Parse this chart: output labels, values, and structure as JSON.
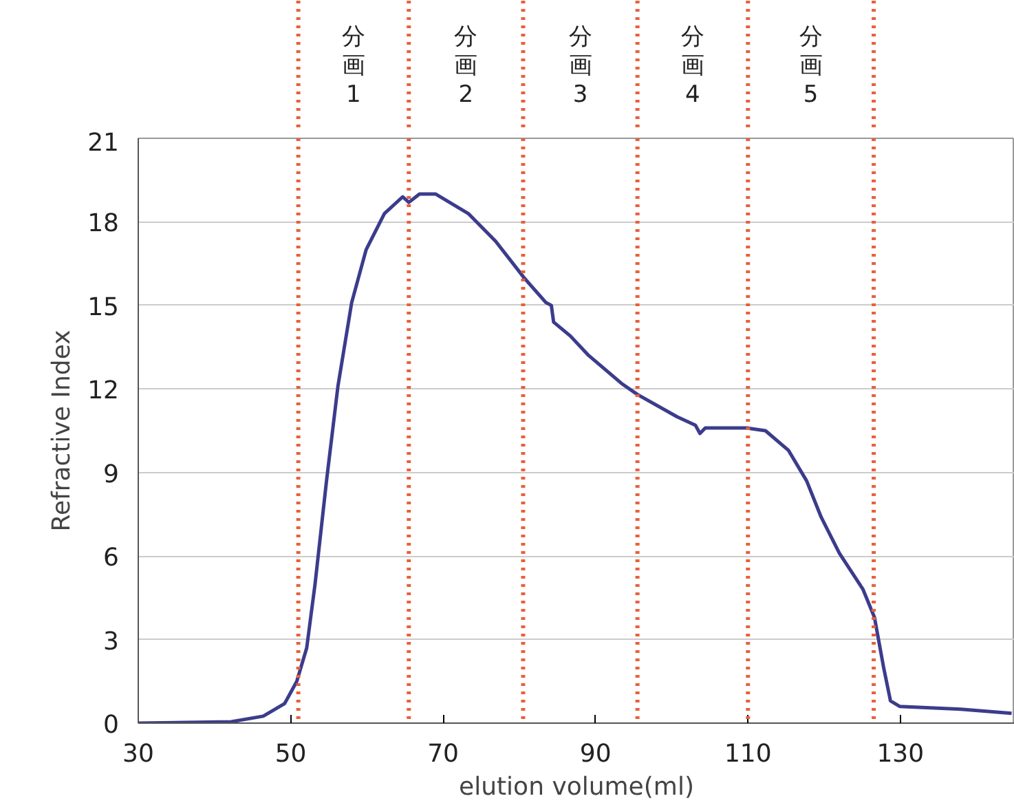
{
  "chart_data": {
    "type": "line",
    "xlabel": "elution volume(ml)",
    "ylabel": "Refractive Index",
    "xlim": [
      30,
      145
    ],
    "xticks": [
      30,
      50,
      70,
      90,
      110,
      130
    ],
    "ylim": [
      0,
      21
    ],
    "yticks": [
      0,
      3,
      6,
      9,
      12,
      15,
      18,
      21
    ],
    "grid": "y",
    "marker": "none",
    "line_style": "solid",
    "series": [
      {
        "color": "#3c3c8c",
        "x": [
          30,
          42.2,
          46.4,
          49.2,
          50.8,
          52.1,
          53.2,
          54.7,
          56.2,
          58.0,
          59.9,
          62.3,
          64.7,
          65.5,
          66.9,
          69.0,
          73.3,
          76.9,
          80.6,
          83.5,
          84.2,
          84.5,
          86.7,
          89.1,
          93.4,
          95.5,
          100.7,
          103.1,
          103.7,
          104.4,
          109.8,
          112.3,
          115.3,
          117.7,
          119.6,
          122.0,
          125.1,
          126.6,
          127.8,
          128.7,
          129.9,
          137.9,
          144.6
        ],
        "values": [
          0,
          0.05,
          0.25,
          0.7,
          1.5,
          2.7,
          5.0,
          8.7,
          12.1,
          15.1,
          17.0,
          18.3,
          18.9,
          18.7,
          19.0,
          19.0,
          18.3,
          17.3,
          16.0,
          15.1,
          15.0,
          14.4,
          13.9,
          13.2,
          12.2,
          11.8,
          11.0,
          10.7,
          10.4,
          10.6,
          10.6,
          10.5,
          9.8,
          8.7,
          7.4,
          6.1,
          4.8,
          3.8,
          2.0,
          0.8,
          0.6,
          0.5,
          0.35
        ]
      }
    ],
    "ref_lines": [
      {
        "axis": "x",
        "value": 51,
        "color": "#e8603c",
        "line_style": "dotted"
      },
      {
        "axis": "x",
        "value": 65.5,
        "color": "#e8603c",
        "line_style": "dotted"
      },
      {
        "axis": "x",
        "value": 80.5,
        "color": "#e8603c",
        "line_style": "dotted"
      },
      {
        "axis": "x",
        "value": 95.5,
        "color": "#e8603c",
        "line_style": "dotted"
      },
      {
        "axis": "x",
        "value": 110,
        "color": "#e8603c",
        "line_style": "dotted"
      },
      {
        "axis": "x",
        "value": 126.5,
        "color": "#e8603c",
        "line_style": "dotted"
      }
    ],
    "annotations": [
      "分画1",
      "分画2",
      "分画3",
      "分画4",
      "分画5"
    ]
  }
}
